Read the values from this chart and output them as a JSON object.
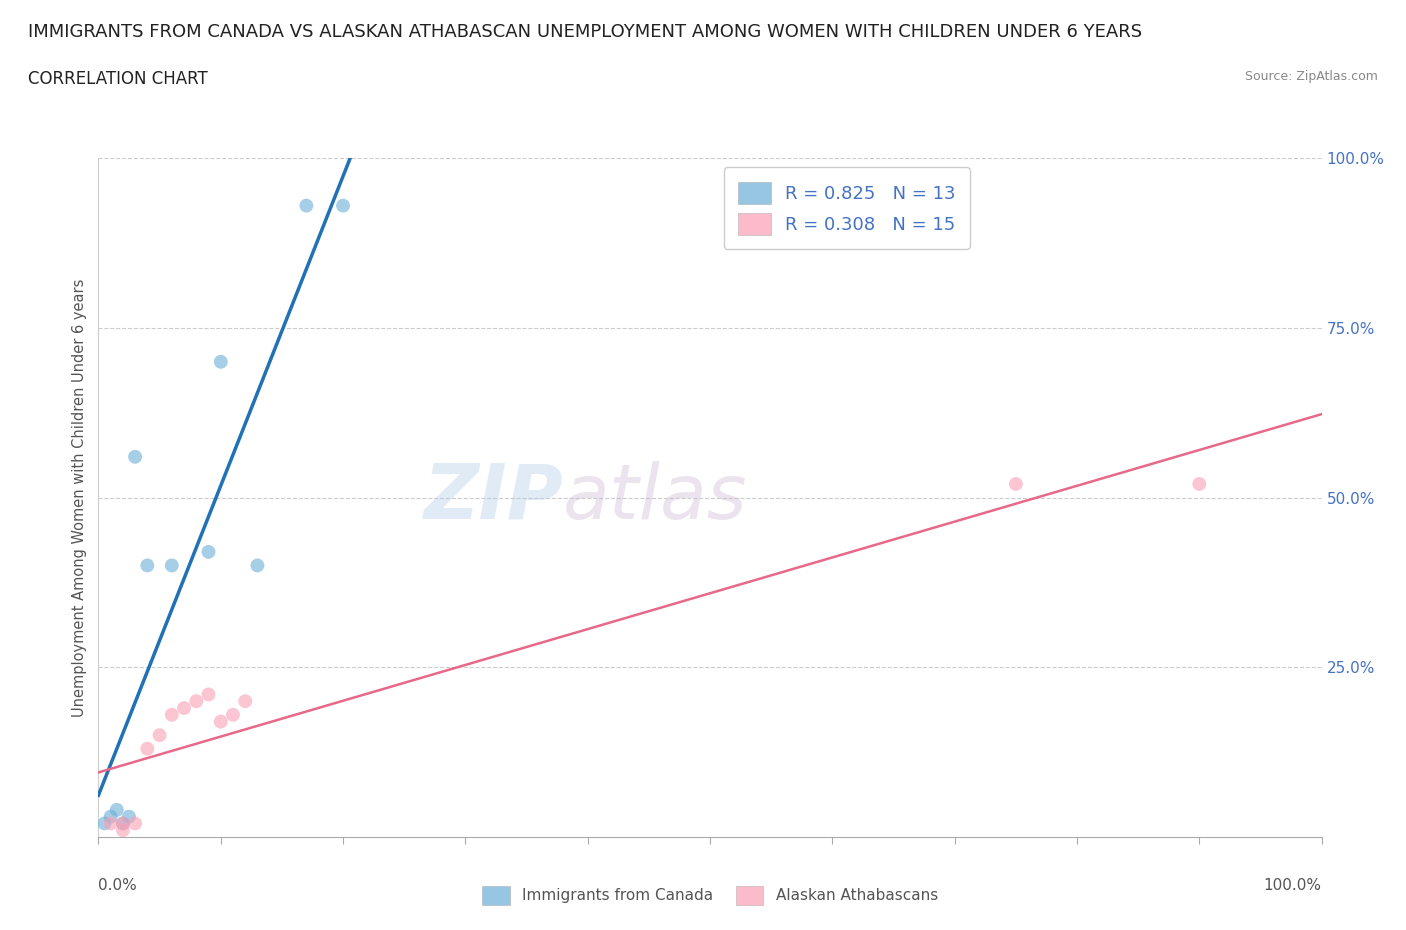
{
  "title": "IMMIGRANTS FROM CANADA VS ALASKAN ATHABASCAN UNEMPLOYMENT AMONG WOMEN WITH CHILDREN UNDER 6 YEARS",
  "subtitle": "CORRELATION CHART",
  "source": "Source: ZipAtlas.com",
  "ylabel": "Unemployment Among Women with Children Under 6 years",
  "legend_blue_label": "R = 0.825   N = 13",
  "legend_pink_label": "R = 0.308   N = 15",
  "legend_bottom_blue": "Immigrants from Canada",
  "legend_bottom_pink": "Alaskan Athabascans",
  "blue_color": "#6baed6",
  "pink_color": "#fa9fb5",
  "blue_line_color": "#2171b5",
  "pink_line_color": "#e8688a",
  "watermark_zip": "ZIP",
  "watermark_atlas": "atlas",
  "grid_color": "#cccccc",
  "background_color": "#ffffff",
  "title_fontsize": 13,
  "subtitle_fontsize": 12,
  "axis_label_fontsize": 10.5,
  "tick_fontsize": 11,
  "legend_fontsize": 13,
  "marker_size": 100,
  "blue_points_x": [
    0.005,
    0.01,
    0.015,
    0.02,
    0.025,
    0.03,
    0.04,
    0.06,
    0.09,
    0.1,
    0.13,
    0.17,
    0.2
  ],
  "blue_points_y": [
    0.02,
    0.03,
    0.04,
    0.02,
    0.03,
    0.56,
    0.4,
    0.4,
    0.42,
    0.7,
    0.4,
    0.93,
    0.93
  ],
  "pink_points_x": [
    0.01,
    0.02,
    0.02,
    0.03,
    0.04,
    0.05,
    0.06,
    0.07,
    0.08,
    0.09,
    0.1,
    0.11,
    0.12,
    0.75,
    0.9
  ],
  "pink_points_y": [
    0.02,
    0.01,
    0.02,
    0.02,
    0.13,
    0.15,
    0.18,
    0.19,
    0.2,
    0.21,
    0.17,
    0.18,
    0.2,
    0.52,
    0.52
  ],
  "xlim": [
    0.0,
    1.0
  ],
  "ylim": [
    0.0,
    1.0
  ],
  "x_ticks": [
    0.0,
    0.1,
    0.2,
    0.3,
    0.4,
    0.5,
    0.6,
    0.7,
    0.8,
    0.9,
    1.0
  ],
  "y_ticks_right": [
    0.0,
    0.25,
    0.5,
    0.75,
    1.0
  ],
  "y_tick_labels_right": [
    "",
    "25.0%",
    "50.0%",
    "75.0%",
    "100.0%"
  ],
  "right_tick_color": "#4472c4",
  "label_color": "#555555"
}
